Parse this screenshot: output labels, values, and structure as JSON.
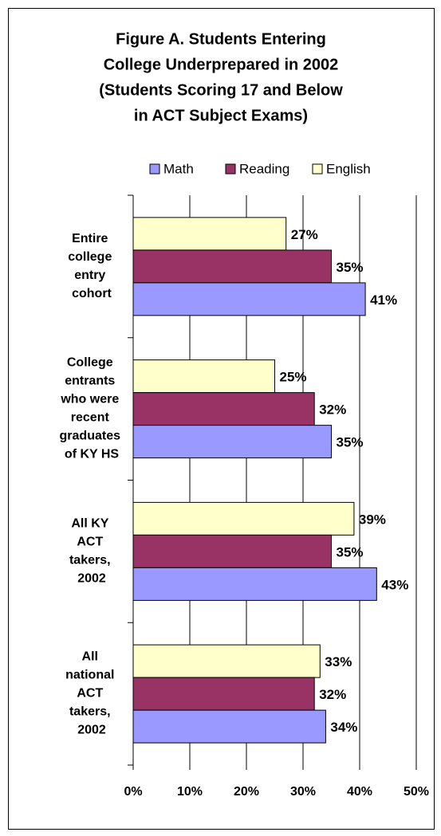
{
  "chart_data": {
    "type": "hbar",
    "title": [
      "Figure A.  Students Entering",
      "College Underprepared in 2002",
      "(Students Scoring 17 and Below",
      "in ACT Subject Exams)"
    ],
    "categories": [
      "Entire college entry cohort",
      "College entrants who were recent graduates of KY HS",
      "All KY ACT takers, 2002",
      "All national ACT takers, 2002"
    ],
    "series": [
      {
        "name": "Math",
        "color": "#9999ff",
        "values": [
          41,
          35,
          43,
          34
        ],
        "value_labels": [
          "41%",
          "35%",
          "43%",
          "34%"
        ]
      },
      {
        "name": "Reading",
        "color": "#993366",
        "values": [
          35,
          32,
          35,
          32
        ],
        "value_labels": [
          "35%",
          "32%",
          "35%",
          "32%"
        ]
      },
      {
        "name": "English",
        "color": "#ffffcc",
        "values": [
          27,
          25,
          39,
          33
        ],
        "value_labels": [
          "27%",
          "25%",
          "39%",
          "33%"
        ]
      }
    ],
    "xlim": [
      0,
      50
    ],
    "xticks": [
      {
        "value": 0,
        "label": "0%"
      },
      {
        "value": 10,
        "label": "10%"
      },
      {
        "value": 20,
        "label": "20%"
      },
      {
        "value": 30,
        "label": "30%"
      },
      {
        "value": 40,
        "label": "40%"
      },
      {
        "value": 50,
        "label": "50%"
      }
    ],
    "grid": true,
    "legend": "top"
  }
}
